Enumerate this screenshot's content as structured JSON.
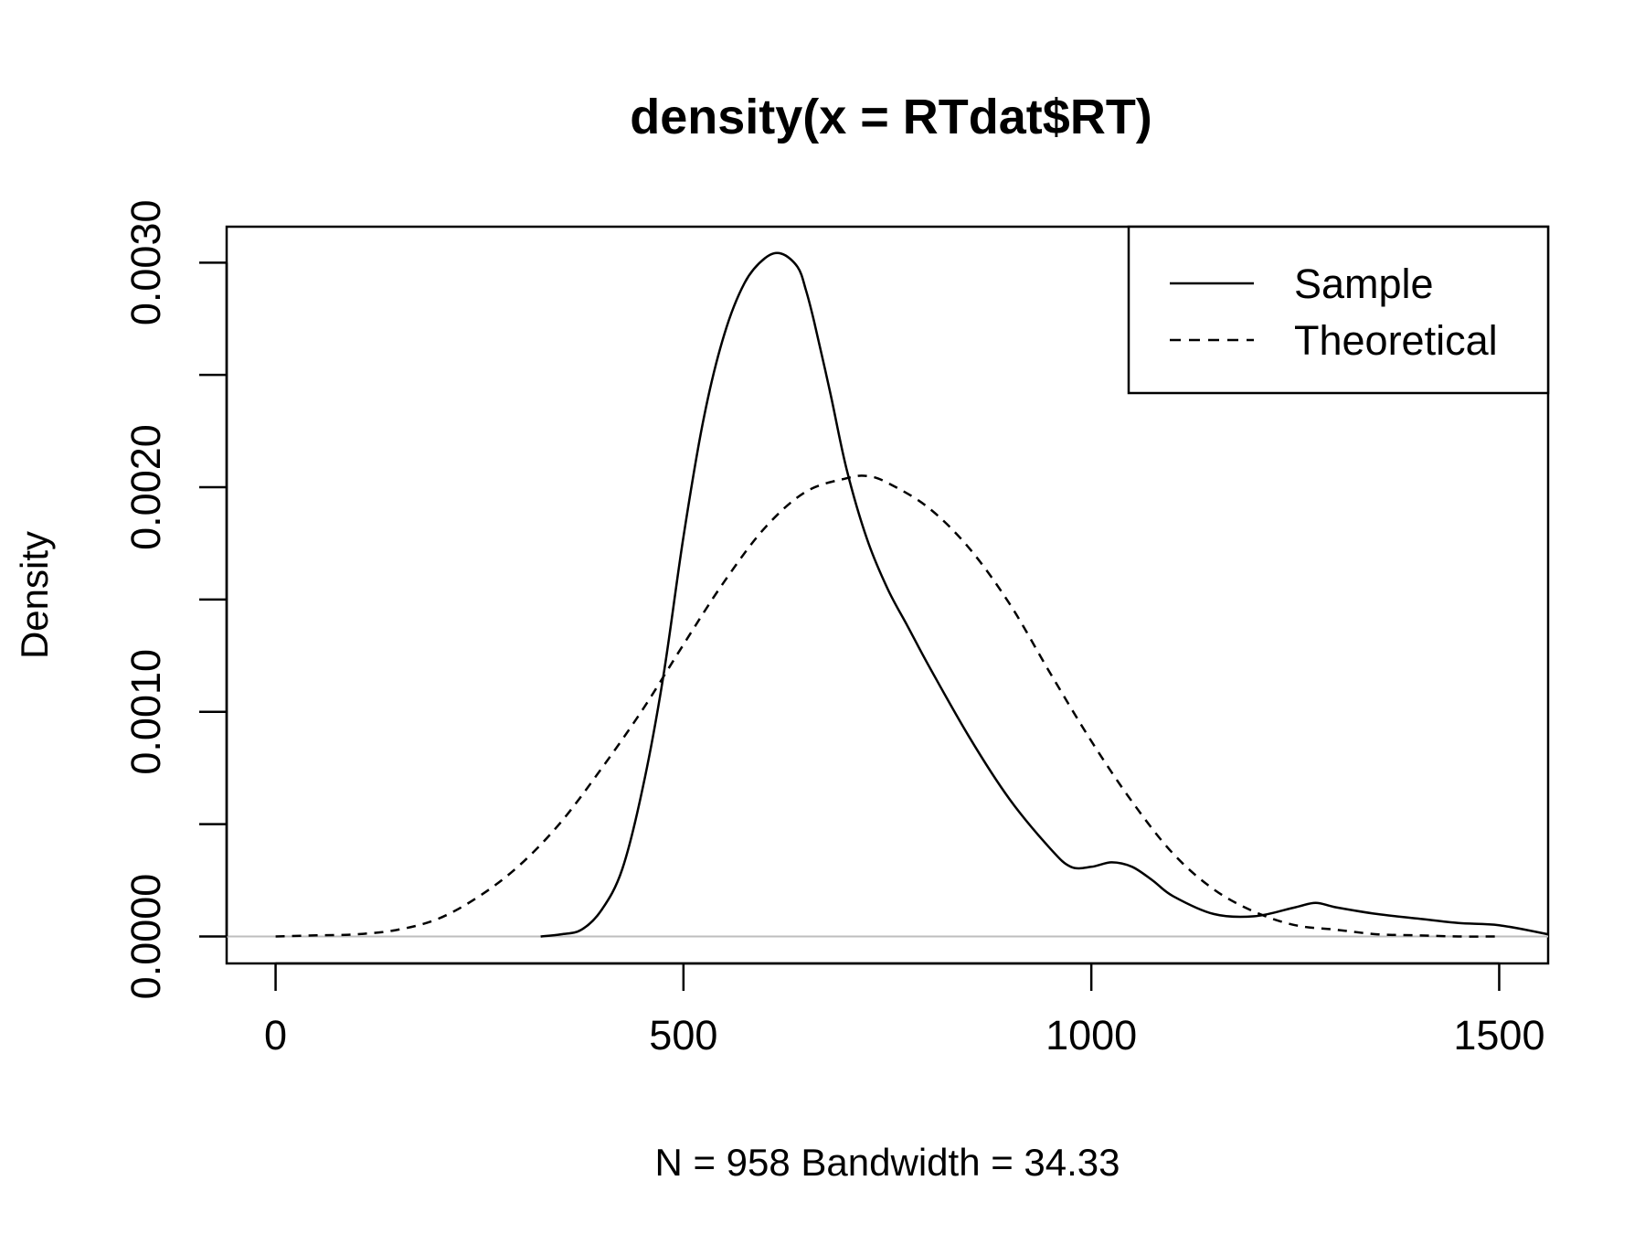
{
  "chart_data": {
    "type": "line",
    "title": "density(x = RTdat$RT)",
    "xlabel": "N = 958   Bandwidth = 34.33",
    "ylabel": "Density",
    "xlim": [
      -60,
      1560
    ],
    "ylim": [
      -0.00012,
      0.00316
    ],
    "x_ticks": [
      0,
      500,
      1000,
      1500
    ],
    "x_tick_labels": [
      "0",
      "500",
      "1000",
      "1500"
    ],
    "y_ticks": [
      0,
      0.0005,
      0.001,
      0.0015,
      0.002,
      0.0025,
      0.003
    ],
    "y_tick_labels": [
      "0.0000",
      "",
      "0.0010",
      "",
      "0.0020",
      "",
      "0.0030"
    ],
    "zero_line": true,
    "grid": false,
    "legend_position": "top-right",
    "legend": [
      {
        "label": "Sample",
        "style": "solid"
      },
      {
        "label": "Theoretical",
        "style": "dashed"
      }
    ],
    "series": [
      {
        "name": "Sample",
        "style": "solid",
        "color": "#000000",
        "x": [
          325,
          350,
          375,
          400,
          425,
          450,
          475,
          500,
          525,
          550,
          575,
          600,
          620,
          640,
          650,
          660,
          680,
          700,
          725,
          750,
          775,
          800,
          850,
          900,
          950,
          975,
          1000,
          1025,
          1050,
          1075,
          1100,
          1150,
          1200,
          1250,
          1275,
          1300,
          1350,
          1400,
          1450,
          1500,
          1560
        ],
        "y": [
          0.0,
          1e-05,
          3e-05,
          0.00012,
          0.0003,
          0.00066,
          0.00115,
          0.00178,
          0.00231,
          0.00268,
          0.00291,
          0.00302,
          0.00304,
          0.00298,
          0.00288,
          0.00274,
          0.00242,
          0.00208,
          0.00177,
          0.00155,
          0.00138,
          0.00121,
          0.00089,
          0.00061,
          0.00039,
          0.00031,
          0.00031,
          0.00033,
          0.00031,
          0.00025,
          0.00018,
          0.0001,
          9e-05,
          0.00013,
          0.00015,
          0.00013,
          0.0001,
          8e-05,
          6e-05,
          5e-05,
          1e-05
        ]
      },
      {
        "name": "Theoretical",
        "style": "dashed",
        "color": "#000000",
        "x": [
          0,
          50,
          100,
          150,
          200,
          250,
          300,
          350,
          400,
          450,
          500,
          550,
          600,
          650,
          700,
          725,
          750,
          800,
          850,
          900,
          950,
          1000,
          1050,
          1100,
          1150,
          1200,
          1250,
          1300,
          1350,
          1400,
          1450,
          1500
        ],
        "y": [
          0.0,
          5e-06,
          1e-05,
          3e-05,
          8e-05,
          0.00018,
          0.00032,
          0.00051,
          0.00075,
          0.00101,
          0.0013,
          0.00158,
          0.00182,
          0.00198,
          0.00204,
          0.00205,
          0.00202,
          0.00191,
          0.00173,
          0.00148,
          0.00117,
          0.00087,
          0.0006,
          0.00037,
          0.00021,
          0.00011,
          5e-05,
          3e-05,
          1e-05,
          5e-06,
          0.0,
          0.0
        ]
      }
    ]
  }
}
